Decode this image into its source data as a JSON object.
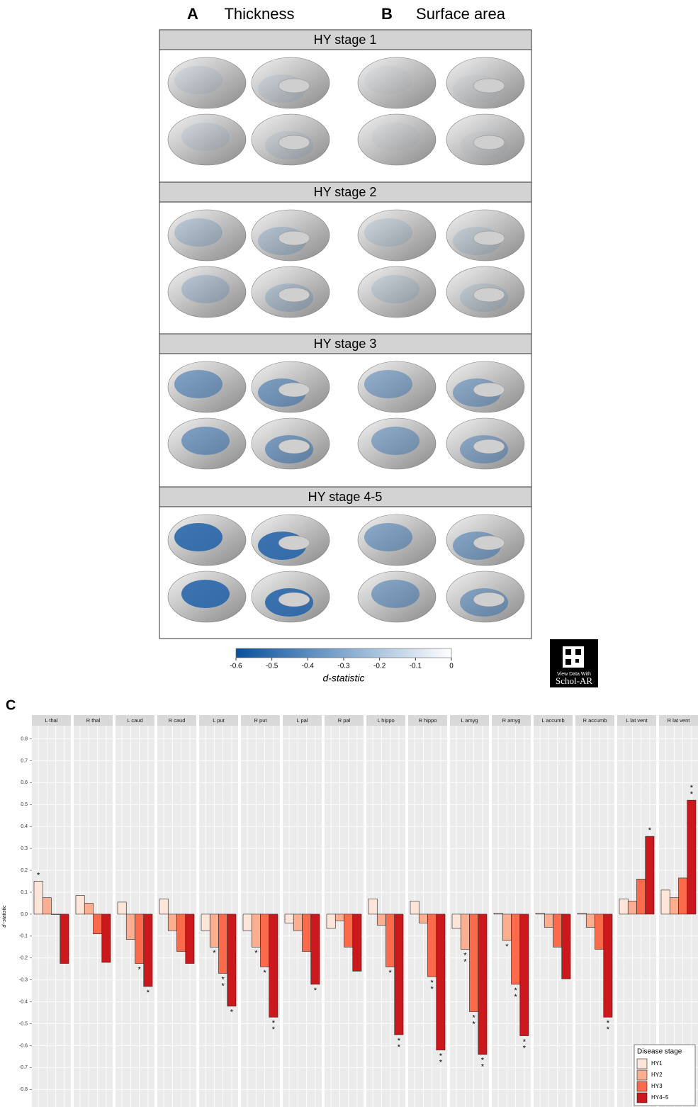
{
  "panel_labels": {
    "a": "A",
    "a_title": "Thickness",
    "b": "B",
    "b_title": "Surface area",
    "c": "C"
  },
  "stages": [
    "HY stage 1",
    "HY stage 2",
    "HY stage 3",
    "HY stage 4-5"
  ],
  "colorbar": {
    "label": "d-statistic",
    "lim": [
      -0.6,
      0
    ],
    "ticks": [
      -0.6,
      -0.5,
      -0.4,
      -0.3,
      -0.2,
      -0.1,
      0
    ],
    "colors": [
      "#08519c",
      "#ffffff"
    ]
  },
  "badge": {
    "line1": "View Data With",
    "line2": "Schol-AR"
  },
  "chart_data": {
    "type": "bar",
    "ylabel": "d−statistic",
    "categories": [
      "L thal",
      "R thal",
      "L caud",
      "R caud",
      "L put",
      "R put",
      "L pal",
      "R pal",
      "L hippo",
      "R hippo",
      "L amyg",
      "R amyg",
      "L accumb",
      "R accumb",
      "L lat vent",
      "R lat vent"
    ],
    "series": [
      {
        "name": "HY1",
        "color": "#fee5d9",
        "values": [
          0.15,
          0.085,
          0.055,
          0.07,
          -0.075,
          -0.075,
          -0.04,
          -0.065,
          0.07,
          0.06,
          -0.065,
          0.005,
          0.005,
          0.005,
          0.07,
          0.11
        ],
        "annotations": [
          [
            "*"
          ],
          null,
          null,
          null,
          null,
          null,
          null,
          null,
          null,
          null,
          null,
          null,
          null,
          null,
          null,
          null
        ]
      },
      {
        "name": "HY2",
        "color": "#fcae91",
        "values": [
          0.075,
          0.05,
          -0.115,
          -0.075,
          -0.15,
          -0.15,
          -0.075,
          -0.03,
          -0.05,
          -0.04,
          -0.16,
          -0.12,
          -0.06,
          -0.06,
          0.06,
          0.075
        ],
        "annotations": [
          null,
          null,
          null,
          null,
          [
            "*"
          ],
          [
            "*"
          ],
          null,
          null,
          null,
          null,
          [
            "*",
            "*"
          ],
          [
            "*"
          ],
          null,
          null,
          null,
          null
        ]
      },
      {
        "name": "HY3",
        "color": "#fb6a4a",
        "values": [
          0,
          -0.09,
          -0.225,
          -0.17,
          -0.27,
          -0.24,
          -0.17,
          -0.15,
          -0.24,
          -0.285,
          -0.445,
          -0.32,
          -0.15,
          -0.16,
          0.16,
          0.165
        ],
        "annotations": [
          null,
          null,
          [
            "*"
          ],
          null,
          [
            "*",
            "*"
          ],
          [
            "*"
          ],
          null,
          null,
          [
            "*"
          ],
          [
            "*",
            "*"
          ],
          [
            "*",
            "*"
          ],
          [
            "*",
            "*"
          ],
          null,
          null,
          null,
          null
        ]
      },
      {
        "name": "HY4–5",
        "color": "#cb181d",
        "values": [
          -0.225,
          -0.22,
          -0.33,
          -0.225,
          -0.42,
          -0.47,
          -0.32,
          -0.26,
          -0.55,
          -0.62,
          -0.64,
          -0.555,
          -0.295,
          -0.47,
          0.355,
          0.52
        ],
        "annotations": [
          null,
          null,
          [
            "*"
          ],
          null,
          [
            "*"
          ],
          [
            "*",
            "*"
          ],
          [
            "*"
          ],
          null,
          [
            "*",
            "*"
          ],
          [
            "*",
            "*"
          ],
          [
            "*",
            "*"
          ],
          [
            "*",
            "*"
          ],
          null,
          [
            "*",
            "*"
          ],
          [
            "*"
          ],
          [
            "*",
            "*"
          ]
        ]
      }
    ],
    "ylim": [
      -0.88,
      0.86
    ],
    "yticks": [
      0.8,
      0.7,
      0.6,
      0.5,
      0.4,
      0.3,
      0.2,
      0.1,
      {
        "value": 0,
        "label": "0.0"
      },
      -0.1,
      -0.2,
      -0.3,
      -0.4,
      -0.5,
      -0.6,
      -0.7,
      -0.8
    ],
    "grid": true,
    "legend_title": "Disease stage",
    "legend_position": "bottom-right"
  }
}
